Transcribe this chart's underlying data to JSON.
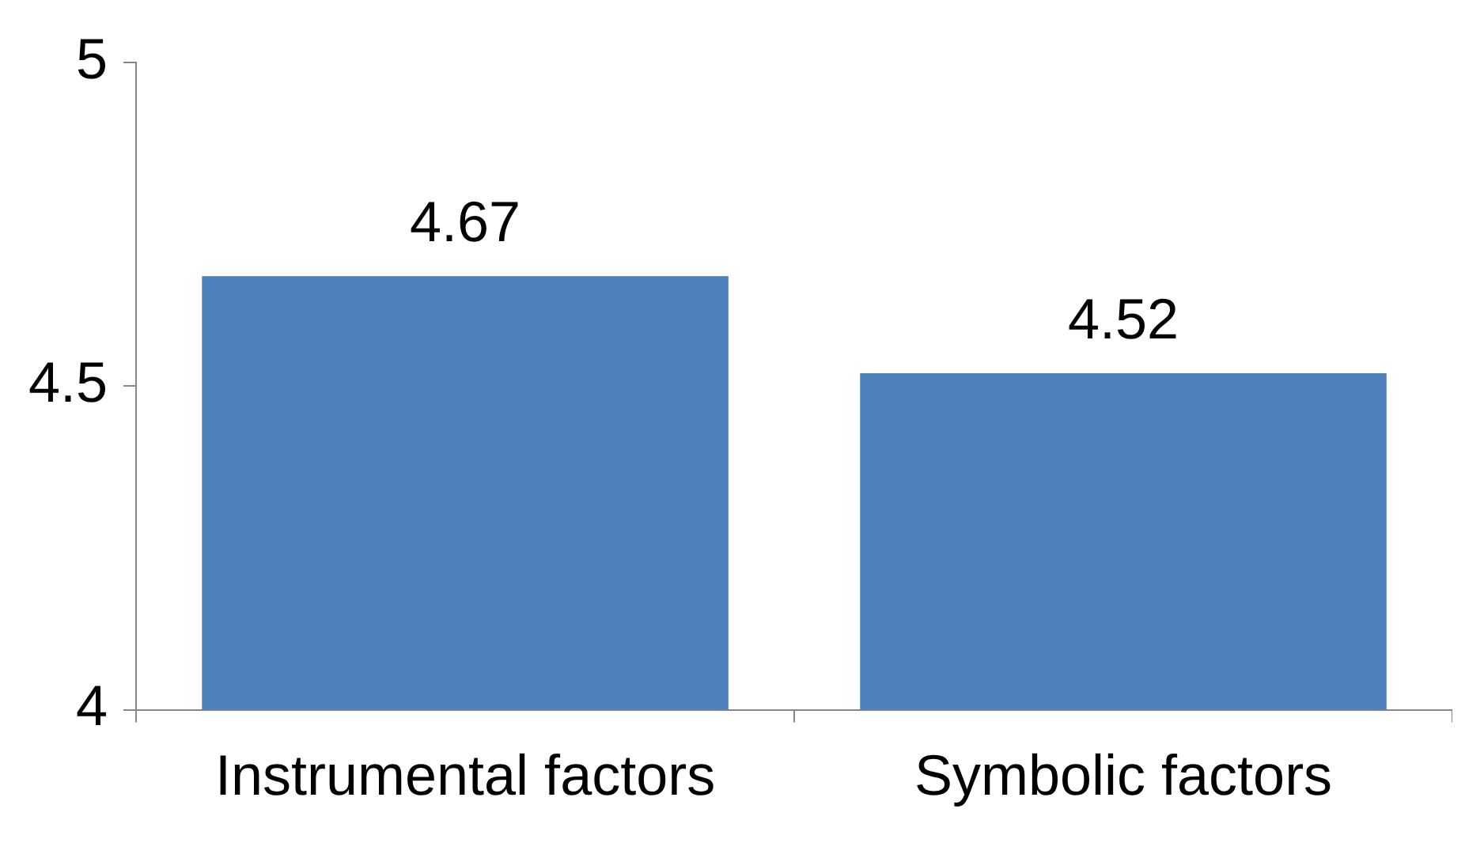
{
  "chart_data": {
    "type": "bar",
    "categories": [
      "Instrumental factors",
      "Symbolic factors"
    ],
    "values": [
      4.67,
      4.52
    ],
    "color": "#4f81bd",
    "ylim": [
      4,
      5
    ],
    "yticks": [
      4,
      4.5,
      5
    ],
    "data_labels": true,
    "legend": false
  }
}
